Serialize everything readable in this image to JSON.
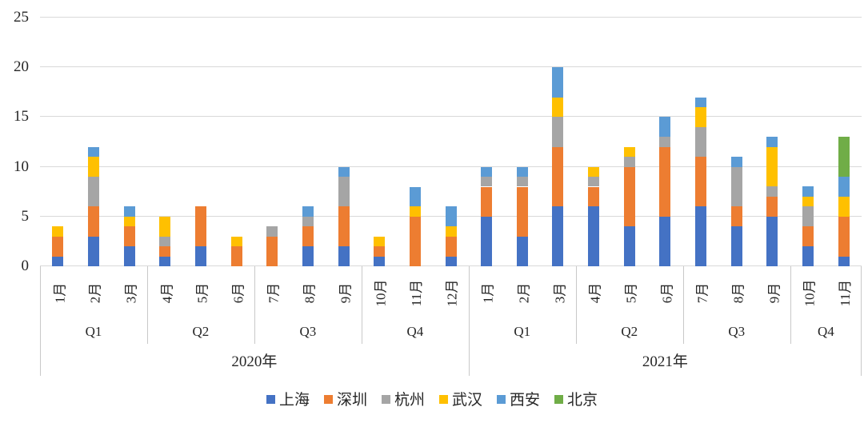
{
  "chart_data": {
    "type": "bar",
    "stacked": true,
    "title": "",
    "grid": true,
    "legend_position": "bottom",
    "y_axis": {
      "min": 0,
      "max": 25,
      "step": 5,
      "ticks": [
        "0",
        "5",
        "10",
        "15",
        "20",
        "25"
      ]
    },
    "x_axis": {
      "months": [
        "1月",
        "2月",
        "3月",
        "4月",
        "5月",
        "6月",
        "7月",
        "8月",
        "9月",
        "10月",
        "11月",
        "12月",
        "1月",
        "2月",
        "3月",
        "4月",
        "5月",
        "6月",
        "7月",
        "8月",
        "9月",
        "10月",
        "11月"
      ],
      "quarters": [
        {
          "label": "Q1",
          "span": 3
        },
        {
          "label": "Q2",
          "span": 3
        },
        {
          "label": "Q3",
          "span": 3
        },
        {
          "label": "Q4",
          "span": 3
        },
        {
          "label": "Q1",
          "span": 3
        },
        {
          "label": "Q2",
          "span": 3
        },
        {
          "label": "Q3",
          "span": 3
        },
        {
          "label": "Q4",
          "span": 2
        }
      ],
      "years": [
        {
          "label": "2020年",
          "span": 12
        },
        {
          "label": "2021年",
          "span": 11
        }
      ]
    },
    "series": [
      {
        "id": "shanghai",
        "name": "上海",
        "color": "#4472C4",
        "values": [
          1,
          3,
          2,
          1,
          2,
          0,
          0,
          2,
          2,
          1,
          0,
          1,
          5,
          3,
          6,
          6,
          4,
          5,
          6,
          4,
          5,
          2,
          1
        ]
      },
      {
        "id": "shenzhen",
        "name": "深圳",
        "color": "#ED7D31",
        "values": [
          2,
          3,
          2,
          1,
          4,
          2,
          3,
          2,
          4,
          1,
          5,
          2,
          3,
          5,
          6,
          2,
          6,
          7,
          5,
          2,
          2,
          2,
          4
        ]
      },
      {
        "id": "hangzhou",
        "name": "杭州",
        "color": "#A5A5A5",
        "values": [
          0,
          3,
          0,
          1,
          0,
          0,
          1,
          1,
          3,
          0,
          0,
          0,
          1,
          1,
          3,
          1,
          1,
          1,
          3,
          4,
          1,
          2,
          0
        ]
      },
      {
        "id": "wuhan",
        "name": "武汉",
        "color": "#FFC000",
        "values": [
          1,
          2,
          1,
          2,
          0,
          1,
          0,
          0,
          0,
          1,
          1,
          1,
          0,
          0,
          2,
          1,
          1,
          0,
          2,
          0,
          4,
          1,
          2
        ]
      },
      {
        "id": "xian",
        "name": "西安",
        "color": "#5B9BD5",
        "values": [
          0,
          1,
          1,
          0,
          0,
          0,
          0,
          1,
          1,
          0,
          2,
          2,
          1,
          1,
          3,
          0,
          0,
          2,
          1,
          1,
          1,
          1,
          2
        ]
      },
      {
        "id": "beijing",
        "name": "北京",
        "color": "#70AD47",
        "values": [
          0,
          0,
          0,
          0,
          0,
          0,
          0,
          0,
          0,
          0,
          0,
          0,
          0,
          0,
          0,
          0,
          0,
          0,
          0,
          0,
          0,
          0,
          4
        ]
      }
    ],
    "colors": {
      "gridline": "#D9D9D9",
      "axis_divider": "#C9C9C9",
      "text": "#262626"
    }
  }
}
